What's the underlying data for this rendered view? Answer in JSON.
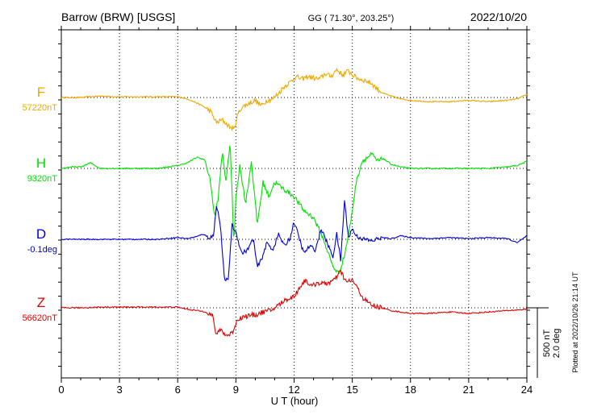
{
  "header": {
    "station": "Barrow (BRW)  [USGS]",
    "coords": "GG ( 71.30°, 203.25°)",
    "date": "2022/10/20"
  },
  "footer": {
    "plotted": "Plotted at 2022/10/26 21:14 UT"
  },
  "scale": {
    "nt": "500 nT",
    "deg": "2.0 deg"
  },
  "chart_data": {
    "type": "line",
    "xlabel": "U T (hour)",
    "ylabel": "",
    "xlim": [
      0,
      24
    ],
    "x_ticks": [
      0,
      3,
      6,
      9,
      12,
      15,
      18,
      21,
      24
    ],
    "grid": "dotted-vertical",
    "colors": {
      "F": "#f0a800",
      "H": "#00e000",
      "D": "#0000d8",
      "Z": "#e00000"
    },
    "series": [
      {
        "name": "F",
        "baseline": "57220nT",
        "x": [
          0,
          1,
          2,
          3,
          4,
          5,
          6,
          6.5,
          7,
          7.4,
          7.7,
          8,
          8.3,
          8.6,
          8.9,
          9.1,
          9.3,
          9.7,
          10,
          10.3,
          10.6,
          10.9,
          11.2,
          11.5,
          11.8,
          12.1,
          12.4,
          12.7,
          13,
          13.3,
          13.6,
          13.9,
          14.2,
          14.5,
          14.8,
          15.1,
          15.4,
          15.7,
          16,
          16.3,
          16.6,
          17,
          17.5,
          18,
          19,
          20,
          21,
          22,
          23,
          23.5,
          24
        ],
        "values": [
          0,
          0,
          10,
          5,
          5,
          5,
          5,
          -10,
          -40,
          -70,
          -100,
          -180,
          -160,
          -200,
          -230,
          -120,
          -70,
          -40,
          -20,
          -60,
          -20,
          -10,
          30,
          80,
          110,
          150,
          130,
          150,
          140,
          130,
          170,
          150,
          200,
          160,
          190,
          150,
          130,
          120,
          100,
          60,
          30,
          10,
          -10,
          -20,
          -30,
          -30,
          -20,
          -30,
          -20,
          -10,
          20
        ]
      },
      {
        "name": "H",
        "baseline": "9320nT",
        "x": [
          0,
          0.5,
          1,
          1.5,
          2,
          3,
          4,
          5,
          6,
          6.5,
          7,
          7.4,
          7.7,
          7.9,
          8.1,
          8.3,
          8.5,
          8.7,
          8.9,
          9,
          9.2,
          9.5,
          9.8,
          10.1,
          10.4,
          10.7,
          11,
          11.5,
          12,
          12.5,
          13,
          13.5,
          14,
          14.3,
          14.6,
          14.9,
          15.2,
          15.5,
          16,
          16.3,
          16.6,
          17,
          17.5,
          18,
          19,
          20,
          21,
          22,
          23,
          23.5,
          24
        ],
        "values": [
          0,
          10,
          10,
          40,
          0,
          0,
          0,
          0,
          20,
          40,
          80,
          60,
          -100,
          -350,
          -200,
          120,
          -100,
          200,
          -550,
          -200,
          20,
          -250,
          50,
          -400,
          -100,
          -200,
          -100,
          -150,
          -200,
          -300,
          -350,
          -500,
          -700,
          -750,
          -620,
          -400,
          -100,
          50,
          100,
          50,
          70,
          30,
          10,
          0,
          0,
          0,
          0,
          0,
          10,
          20,
          50
        ]
      },
      {
        "name": "D",
        "baseline": "-0.1deg",
        "x": [
          0,
          1,
          2,
          3,
          4,
          5,
          6,
          6.5,
          7,
          7.3,
          7.6,
          7.85,
          8,
          8.2,
          8.4,
          8.6,
          8.8,
          9,
          9.3,
          9.6,
          9.9,
          10.1,
          10.3,
          10.6,
          10.9,
          11.2,
          11.5,
          11.8,
          12,
          12.2,
          12.5,
          12.8,
          13.1,
          13.4,
          13.7,
          14,
          14.2,
          14.4,
          14.6,
          14.8,
          15,
          15.2,
          15.5,
          16,
          16.5,
          17,
          17.5,
          18,
          19,
          20,
          21,
          22,
          23,
          23.5,
          24
        ],
        "values": [
          0,
          0,
          0,
          0,
          0,
          0,
          0.05,
          0.02,
          0.08,
          0.15,
          0.05,
          0.1,
          1.0,
          0.4,
          -1.1,
          -1.2,
          0.4,
          0.2,
          -0.4,
          -0.3,
          0.02,
          -0.8,
          -0.6,
          -0.1,
          -0.3,
          0.15,
          -0.2,
          0.05,
          0.5,
          0.15,
          -0.4,
          -0.2,
          -0.3,
          0.3,
          -0.1,
          -0.5,
          0.15,
          -0.6,
          1.1,
          0.05,
          0.3,
          0.1,
          0.02,
          -0.05,
          0.05,
          0.02,
          0.1,
          0.05,
          0.02,
          0.05,
          0.02,
          0.05,
          0.02,
          -0.1,
          0.1
        ]
      },
      {
        "name": "Z",
        "baseline": "56620nT",
        "x": [
          0,
          1,
          2,
          3,
          4,
          5,
          6,
          6.5,
          7,
          7.5,
          7.8,
          8.0,
          8.2,
          8.5,
          8.8,
          9.1,
          9.5,
          10,
          10.4,
          10.8,
          11.2,
          11.6,
          12,
          12.3,
          12.6,
          12.9,
          13.2,
          13.5,
          13.8,
          14.1,
          14.4,
          14.7,
          15,
          15.3,
          15.6,
          16,
          16.5,
          17,
          18,
          19,
          20,
          21,
          22,
          23,
          24
        ],
        "values": [
          0,
          0,
          5,
          5,
          5,
          5,
          5,
          -10,
          -20,
          -30,
          -60,
          -200,
          -150,
          -200,
          -180,
          -80,
          -60,
          -50,
          -30,
          -20,
          20,
          60,
          80,
          150,
          200,
          150,
          180,
          170,
          180,
          200,
          260,
          180,
          200,
          130,
          60,
          20,
          0,
          -20,
          -40,
          -40,
          -30,
          -40,
          -30,
          -20,
          -10
        ]
      }
    ]
  }
}
